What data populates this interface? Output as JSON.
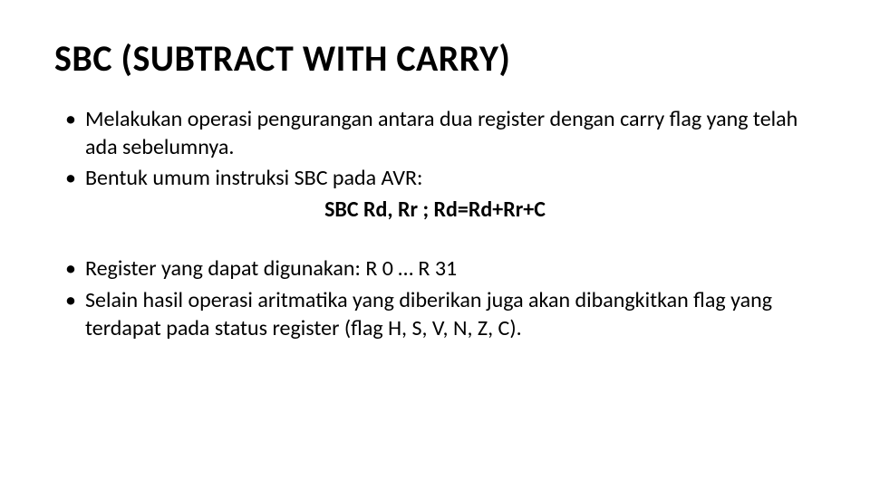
{
  "title": "SBC (SUBTRACT WITH CARRY)",
  "bullets_top": [
    "Melakukan operasi pengurangan antara dua register dengan carry flag yang telah ada sebelumnya.",
    "Bentuk umum instruksi SBC pada AVR:"
  ],
  "code_line": "SBC Rd, Rr ; Rd=Rd+Rr+C",
  "bullets_bottom": [
    "Register yang dapat digunakan: R 0 … R 31",
    "Selain hasil operasi aritmatika yang diberikan juga akan dibangkitkan flag yang terdapat pada status register (flag H, S, V, N, Z, C)."
  ],
  "style": {
    "title_fontsize": 40,
    "body_fontsize": 24,
    "title_weight": 700,
    "code_weight": 700,
    "text_color": "#000000",
    "background_color": "#ffffff",
    "font_family": "Calibri"
  }
}
